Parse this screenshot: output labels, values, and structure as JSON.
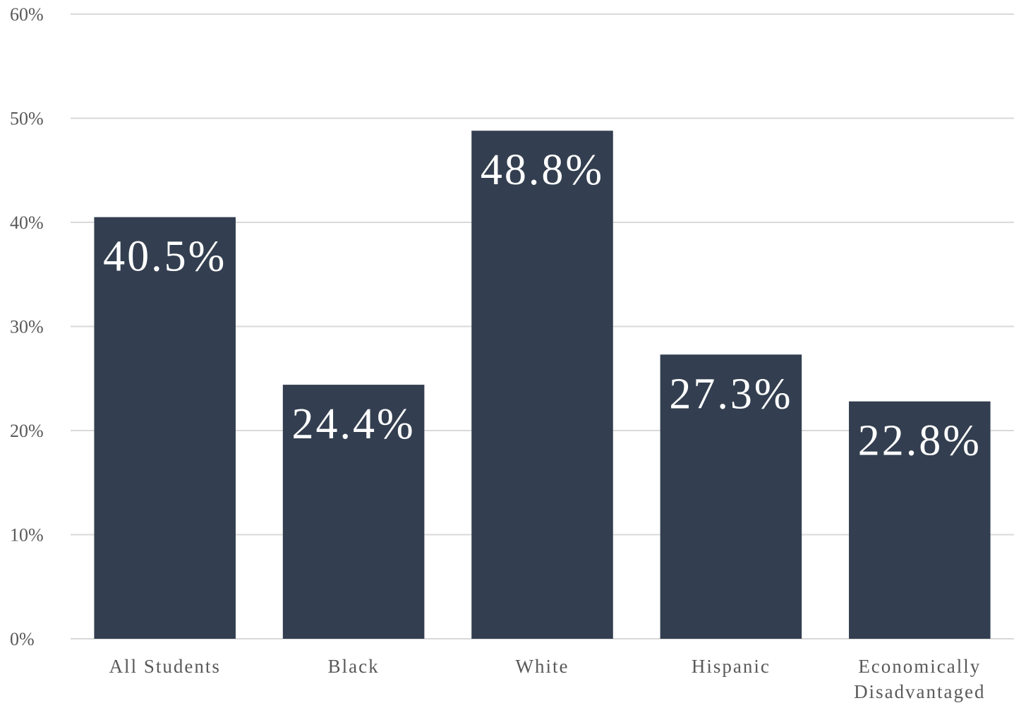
{
  "chart_data": {
    "type": "bar",
    "title": "",
    "xlabel": "",
    "ylabel": "",
    "categories": [
      [
        "All Students"
      ],
      [
        "Black"
      ],
      [
        "White"
      ],
      [
        "Hispanic"
      ],
      [
        "Economically",
        "Disadvantaged"
      ]
    ],
    "values": [
      40.5,
      24.4,
      48.8,
      27.3,
      22.8
    ],
    "data_labels": [
      "40.5%",
      "24.4%",
      "48.8%",
      "27.3%",
      "22.8%"
    ],
    "ylim": [
      0,
      60
    ],
    "y_ticks": [
      0,
      10,
      20,
      30,
      40,
      50,
      60
    ],
    "y_tick_labels": [
      "0%",
      "10%",
      "20%",
      "30%",
      "40%",
      "50%",
      "60%"
    ],
    "grid": true,
    "legend": "none",
    "colors": {
      "bar": "#333f50",
      "grid": "#d9d9d9",
      "axis_text": "#595959",
      "data_label": "#ffffff"
    }
  }
}
